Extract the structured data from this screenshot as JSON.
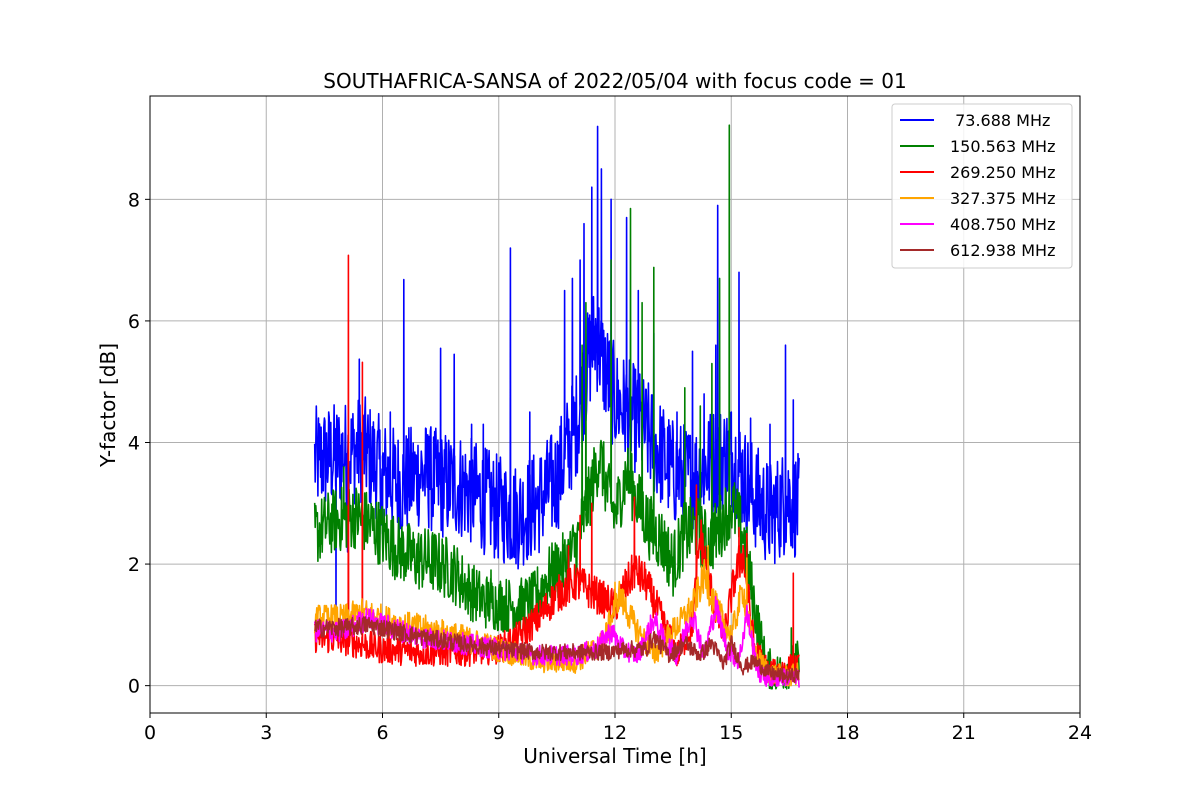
{
  "chart_data": {
    "type": "line",
    "title": "SOUTHAFRICA-SANSA of 2022/05/04 with focus code = 01",
    "xlabel": "Universal Time [h]",
    "ylabel": "Y-factor [dB]",
    "xlim": [
      0,
      24
    ],
    "ylim": [
      -0.45,
      9.7
    ],
    "xticks": [
      "0",
      "3",
      "6",
      "9",
      "12",
      "15",
      "18",
      "21",
      "24"
    ],
    "yticks": [
      "0",
      "2",
      "4",
      "6",
      "8"
    ],
    "grid": true,
    "legend_position": "top-right",
    "series": [
      {
        "name": " 73.688 MHz",
        "color": "#0000ff",
        "x": [
          4.25,
          5.0,
          5.5,
          6.0,
          6.5,
          7.0,
          7.5,
          8.0,
          8.5,
          9.0,
          9.5,
          10.0,
          10.5,
          11.0,
          11.3,
          11.5,
          11.7,
          12.0,
          12.5,
          13.0,
          13.5,
          14.0,
          14.5,
          15.0,
          15.5,
          16.0,
          16.5,
          16.75
        ],
        "values": [
          3.7,
          3.8,
          3.9,
          3.5,
          3.3,
          3.5,
          3.3,
          3.3,
          3.1,
          2.9,
          2.8,
          3.0,
          3.4,
          4.3,
          5.3,
          5.8,
          5.3,
          4.7,
          4.4,
          4.0,
          3.5,
          3.4,
          3.7,
          3.8,
          3.2,
          2.8,
          3.1,
          2.9
        ],
        "spikes": [
          [
            4.35,
            3.95
          ],
          [
            4.8,
            1.2
          ],
          [
            5.1,
            2.2
          ],
          [
            5.4,
            5.37
          ],
          [
            5.6,
            4.15
          ],
          [
            6.0,
            2.5
          ],
          [
            6.2,
            4.5
          ],
          [
            6.55,
            6.68
          ],
          [
            7.2,
            4.1
          ],
          [
            7.5,
            5.55
          ],
          [
            7.85,
            5.45
          ],
          [
            8.3,
            4.3
          ],
          [
            8.6,
            4.3
          ],
          [
            9.3,
            7.2
          ],
          [
            9.8,
            4.5
          ],
          [
            10.7,
            6.5
          ],
          [
            10.9,
            6.7
          ],
          [
            11.1,
            7.0
          ],
          [
            11.2,
            7.6
          ],
          [
            11.4,
            8.2
          ],
          [
            11.55,
            9.2
          ],
          [
            11.65,
            8.5
          ],
          [
            11.9,
            8.0
          ],
          [
            12.3,
            7.7
          ],
          [
            12.6,
            6.5
          ],
          [
            13.0,
            5.8
          ],
          [
            13.6,
            4.5
          ],
          [
            14.0,
            5.5
          ],
          [
            14.3,
            4.8
          ],
          [
            14.6,
            5.6
          ],
          [
            14.65,
            7.9
          ],
          [
            15.0,
            4.5
          ],
          [
            15.2,
            6.8
          ],
          [
            15.5,
            4.4
          ],
          [
            16.0,
            4.3
          ],
          [
            16.4,
            5.6
          ],
          [
            16.6,
            4.7
          ]
        ]
      },
      {
        "name": "150.563 MHz",
        "color": "#008000",
        "x": [
          4.25,
          4.7,
          5.3,
          5.8,
          6.3,
          6.8,
          7.3,
          7.8,
          8.2,
          8.6,
          9.0,
          9.5,
          9.9,
          10.3,
          10.7,
          11.0,
          11.3,
          11.6,
          11.8,
          12.0,
          12.3,
          12.6,
          12.9,
          13.2,
          13.5,
          13.8,
          14.1,
          14.4,
          14.7,
          15.0,
          15.3,
          15.6,
          15.9,
          16.2,
          16.5,
          16.75
        ],
        "values": [
          2.5,
          2.7,
          2.8,
          2.6,
          2.3,
          2.1,
          2.05,
          1.9,
          1.6,
          1.4,
          1.35,
          1.3,
          1.4,
          1.8,
          2.0,
          2.3,
          3.0,
          3.8,
          3.2,
          2.8,
          3.5,
          3.0,
          2.6,
          2.4,
          2.0,
          2.5,
          2.6,
          2.3,
          2.6,
          3.0,
          2.5,
          1.3,
          0.3,
          0.2,
          0.3,
          0.4
        ],
        "spikes": [
          [
            5.0,
            3.6
          ],
          [
            6.6,
            1.8
          ],
          [
            8.8,
            1.9
          ],
          [
            10.0,
            1.95
          ],
          [
            10.6,
            2.2
          ],
          [
            11.15,
            5.6
          ],
          [
            11.25,
            6.3
          ],
          [
            11.9,
            7.0
          ],
          [
            12.4,
            7.85
          ],
          [
            12.7,
            6.3
          ],
          [
            13.0,
            6.88
          ],
          [
            13.8,
            4.9
          ],
          [
            14.2,
            4.6
          ],
          [
            14.5,
            5.3
          ],
          [
            14.7,
            6.7
          ],
          [
            14.95,
            9.22
          ],
          [
            16.55,
            0.95
          ]
        ]
      },
      {
        "name": "269.250 MHz",
        "color": "#ff0000",
        "x": [
          4.25,
          5.0,
          6.0,
          7.0,
          8.0,
          9.0,
          9.5,
          10.0,
          10.5,
          11.0,
          11.5,
          12.0,
          12.5,
          12.8,
          13.2,
          13.6,
          14.0,
          14.2,
          14.5,
          14.8,
          15.1,
          15.3,
          15.6,
          16.0,
          16.5,
          16.75
        ],
        "values": [
          0.8,
          0.75,
          0.6,
          0.55,
          0.55,
          0.6,
          0.8,
          1.1,
          1.5,
          1.7,
          1.5,
          1.3,
          1.9,
          1.7,
          1.1,
          0.5,
          1.0,
          2.5,
          1.5,
          0.8,
          1.8,
          2.2,
          0.6,
          0.2,
          0.3,
          0.3
        ],
        "spikes": [
          [
            5.12,
            7.08
          ],
          [
            5.48,
            5.32
          ],
          [
            4.4,
            1.1
          ],
          [
            10.8,
            2.3
          ],
          [
            11.1,
            2.8
          ],
          [
            11.4,
            3.0
          ],
          [
            12.5,
            3.1
          ],
          [
            14.1,
            3.3
          ],
          [
            15.2,
            2.6
          ],
          [
            15.4,
            2.5
          ],
          [
            16.6,
            1.85
          ]
        ]
      },
      {
        "name": "327.375 MHz",
        "color": "#ffa500",
        "x": [
          4.25,
          5.0,
          5.5,
          6.0,
          6.5,
          7.0,
          8.0,
          9.0,
          10.0,
          11.0,
          11.7,
          12.1,
          12.5,
          13.0,
          13.5,
          14.0,
          14.3,
          14.6,
          15.0,
          15.3,
          15.6,
          16.0,
          16.5,
          16.75
        ],
        "values": [
          1.1,
          1.1,
          1.2,
          1.1,
          1.0,
          0.95,
          0.8,
          0.6,
          0.4,
          0.4,
          0.7,
          1.5,
          1.0,
          0.5,
          0.9,
          1.3,
          1.8,
          1.3,
          0.8,
          1.6,
          0.5,
          0.2,
          0.15,
          0.2
        ],
        "spikes": [
          [
            12.0,
            1.7
          ],
          [
            14.4,
            2.3
          ],
          [
            15.4,
            2.1
          ]
        ]
      },
      {
        "name": "408.750 MHz",
        "color": "#ff00ff",
        "x": [
          4.25,
          5.0,
          5.6,
          6.0,
          7.0,
          8.0,
          9.0,
          10.0,
          11.0,
          11.5,
          11.9,
          12.2,
          12.6,
          13.0,
          13.3,
          13.6,
          14.0,
          14.3,
          14.6,
          14.9,
          15.2,
          15.4,
          15.7,
          16.0,
          16.5,
          16.75
        ],
        "values": [
          0.9,
          0.9,
          1.1,
          1.0,
          0.8,
          0.7,
          0.6,
          0.5,
          0.5,
          0.6,
          0.9,
          0.6,
          0.5,
          1.1,
          0.7,
          0.5,
          1.2,
          0.5,
          1.3,
          0.6,
          0.4,
          1.2,
          0.2,
          0.1,
          0.15,
          0.1
        ],
        "spikes": []
      },
      {
        "name": "612.938 MHz",
        "color": "#a52a2a",
        "x": [
          4.25,
          5.0,
          5.6,
          6.0,
          7.0,
          8.0,
          9.0,
          10.0,
          11.0,
          11.8,
          12.3,
          12.8,
          13.0,
          13.4,
          13.8,
          14.2,
          14.5,
          14.8,
          15.0,
          15.3,
          15.6,
          16.0,
          16.5,
          16.75
        ],
        "values": [
          0.95,
          0.95,
          1.0,
          0.95,
          0.8,
          0.7,
          0.6,
          0.55,
          0.55,
          0.55,
          0.6,
          0.6,
          0.8,
          0.5,
          0.7,
          0.5,
          0.7,
          0.35,
          0.7,
          0.3,
          0.4,
          0.2,
          0.15,
          0.2
        ],
        "spikes": []
      }
    ]
  }
}
